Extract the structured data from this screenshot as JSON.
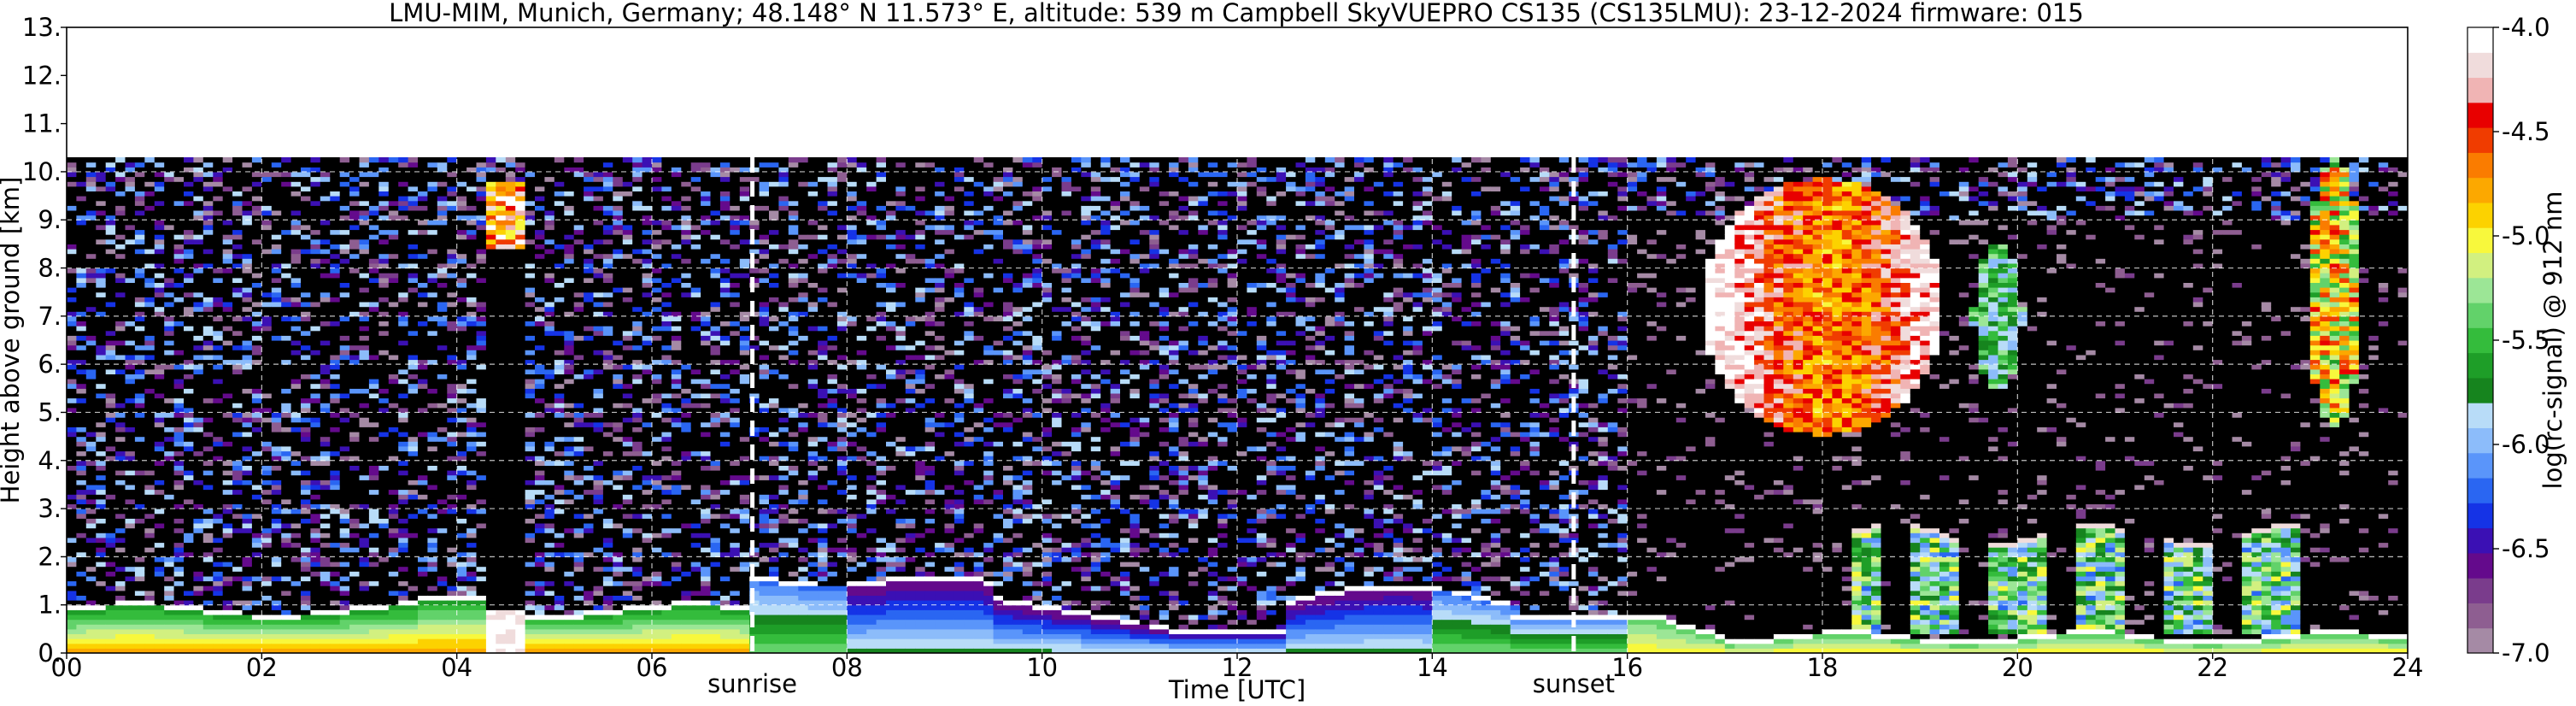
{
  "chart_data": {
    "type": "heatmap",
    "title": "LMU-MIM, Munich, Germany; 48.148° N 11.573° E, altitude: 539 m    Campbell SkyVUEPRO CS135 (CS135LMU): 23-12-2024    firmware: 015",
    "xlabel": "Time [UTC]",
    "ylabel": "Height above ground [km]",
    "xlim": [
      0,
      24
    ],
    "ylim": [
      0,
      13
    ],
    "x_ticks": [
      0,
      2,
      4,
      6,
      8,
      10,
      12,
      14,
      16,
      18,
      20,
      22,
      24
    ],
    "x_tick_labels": [
      "00",
      "02",
      "04",
      "06",
      "08",
      "10",
      "12",
      "14",
      "16",
      "18",
      "20",
      "22",
      "24"
    ],
    "y_ticks": [
      0,
      1,
      2,
      3,
      4,
      5,
      6,
      7,
      8,
      9,
      10,
      11,
      12,
      13
    ],
    "y_tick_labels": [
      "0.",
      "1.",
      "2.",
      "3.",
      "4.",
      "5.",
      "6.",
      "7.",
      "8.",
      "9.",
      "10.",
      "11.",
      "12.",
      "13."
    ],
    "grid": true,
    "data_top_km": 10.3,
    "events": [
      {
        "label": "sunrise",
        "time_h": 7.03
      },
      {
        "label": "sunset",
        "time_h": 15.45
      }
    ],
    "colorbar": {
      "label": "log(rc-signal) @ 912 nm",
      "min": -7.0,
      "max": -4.0,
      "tick_values": [
        -7.0,
        -6.5,
        -6.0,
        -5.5,
        -5.0,
        -4.5,
        -4.0
      ],
      "tick_labels": [
        "-7.0",
        "-6.5",
        "-6.0",
        "-5.5",
        "-5.0",
        "-4.5",
        "-4.0"
      ],
      "colors": [
        "#a58aa5",
        "#8e5e91",
        "#7a3c8c",
        "#640a8c",
        "#3b10b4",
        "#1533e6",
        "#2a66f2",
        "#5a95fa",
        "#8cbcfa",
        "#b8dcf8",
        "#16841e",
        "#1e9e28",
        "#34bc3c",
        "#62d26a",
        "#9ce696",
        "#d2f080",
        "#f8f83c",
        "#fcd200",
        "#fca800",
        "#fa7c00",
        "#f03c00",
        "#e80000",
        "#f0b4b4",
        "#f0dcdc",
        "#ffffff"
      ]
    },
    "features": [
      {
        "name": "boundary layer top (white contour)",
        "time_range_h": [
          0,
          24
        ],
        "height_km_range": [
          0.1,
          1.6
        ]
      },
      {
        "name": "low cloud / strong backscatter 00-07 UTC",
        "time_range_h": [
          0,
          7
        ],
        "height_km_range": [
          0.1,
          1.0
        ]
      },
      {
        "name": "residual layer 07-12 UTC",
        "time_range_h": [
          7,
          12
        ],
        "height_km_range": [
          0.1,
          1.6
        ]
      },
      {
        "name": "precipitation column 04-05 UTC",
        "time_range_h": [
          4.3,
          4.7
        ],
        "height_km_range": [
          0,
          10.0
        ]
      },
      {
        "name": "mid-level cloud 17-19 UTC",
        "time_range_h": [
          16.8,
          19.3
        ],
        "height_km_range": [
          4.5,
          9.5
        ]
      },
      {
        "name": "mid-level cloud 23 UTC",
        "time_range_h": [
          23.0,
          23.5
        ],
        "height_km_range": [
          5.0,
          10.0
        ]
      },
      {
        "name": "low cloud tops 18-23 UTC",
        "time_range_h": [
          18,
          23
        ],
        "height_km_range": [
          2.0,
          2.7
        ]
      }
    ]
  }
}
